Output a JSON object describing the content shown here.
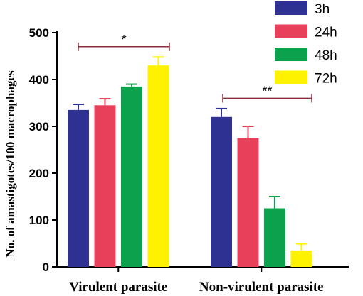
{
  "chart_data": {
    "type": "bar",
    "ylabel": "No. of amastigotes/100 macrophages",
    "xlabel": "",
    "ylim": [
      0,
      500
    ],
    "yticks": [
      0,
      100,
      200,
      300,
      400,
      500
    ],
    "categories": [
      "Virulent parasite",
      "Non-virulent parasite"
    ],
    "series": [
      {
        "name": "3h",
        "color": "#2e3192",
        "values": [
          335,
          320
        ],
        "errors": [
          12,
          18
        ]
      },
      {
        "name": "24h",
        "color": "#e8405a",
        "values": [
          345,
          275
        ],
        "errors": [
          14,
          25
        ]
      },
      {
        "name": "48h",
        "color": "#0ca14c",
        "values": [
          385,
          125
        ],
        "errors": [
          5,
          25
        ]
      },
      {
        "name": "72h",
        "color": "#fff200",
        "values": [
          430,
          35
        ],
        "errors": [
          18,
          14
        ]
      }
    ],
    "significance": [
      {
        "group": "Virulent parasite",
        "label": "*",
        "level": 470
      },
      {
        "group": "Non-virulent parasite",
        "label": "**",
        "level": 360
      }
    ],
    "bracket_color": "#8b2f3a",
    "legend_position": "top-right",
    "grid": false
  }
}
